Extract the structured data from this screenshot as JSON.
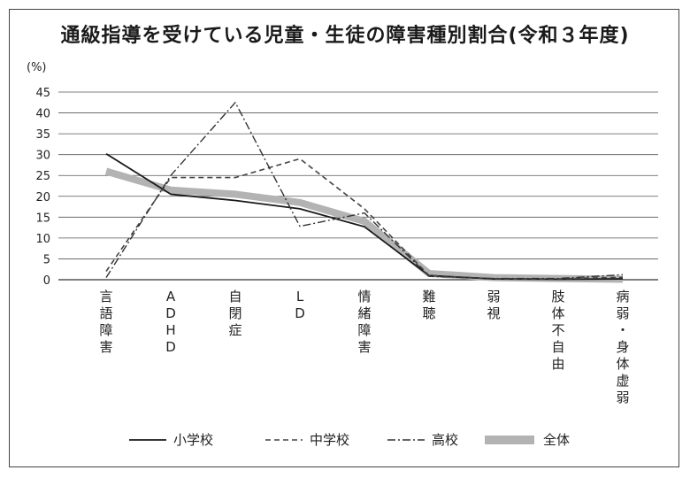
{
  "chart_data": {
    "type": "line",
    "title": "通級指導を受けている児童・生徒の障害種別割合(令和３年度)",
    "ylabel": "(%)",
    "ylim": [
      0,
      45
    ],
    "yticks": [
      0,
      5,
      10,
      15,
      20,
      25,
      30,
      35,
      40,
      45
    ],
    "grid": true,
    "legend_position": "bottom",
    "categories": [
      "言語障害",
      "ADHD",
      "自閉症",
      "LD",
      "情緒障害",
      "難聴",
      "弱視",
      "肢体不自由",
      "病弱・身体虚弱"
    ],
    "series": [
      {
        "name": "小学校",
        "style": "solid",
        "color": "#1a1a1a",
        "values": [
          30.2,
          20.5,
          19.0,
          17.0,
          12.7,
          1.0,
          0.2,
          0.1,
          0.2
        ]
      },
      {
        "name": "中学校",
        "style": "dashed",
        "color": "#444444",
        "values": [
          2.0,
          24.5,
          24.5,
          29.0,
          17.0,
          1.0,
          0.2,
          0.2,
          0.6
        ]
      },
      {
        "name": "高校",
        "style": "dashdot",
        "color": "#333333",
        "values": [
          0.5,
          25.0,
          42.5,
          12.8,
          16.0,
          0.8,
          0.3,
          0.3,
          1.2
        ]
      },
      {
        "name": "全体",
        "style": "thick",
        "color": "#b3b3b3",
        "values": [
          26.0,
          21.5,
          20.5,
          18.5,
          14.0,
          1.5,
          0.5,
          0.3,
          0.1
        ]
      }
    ]
  }
}
